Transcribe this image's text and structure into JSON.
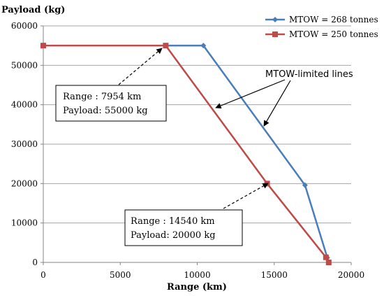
{
  "chart_data": {
    "type": "line",
    "title": "",
    "xlabel": "Range (km)",
    "ylabel": "Payload (kg)",
    "xlim": [
      0,
      20000
    ],
    "ylim": [
      0,
      60000
    ],
    "x_ticks": [
      0,
      5000,
      10000,
      15000,
      20000
    ],
    "y_ticks": [
      0,
      10000,
      20000,
      30000,
      40000,
      50000,
      60000
    ],
    "grid": true,
    "legend_position": "top-right",
    "series": [
      {
        "name": "MTOW = 268 tonnes",
        "color": "#4a7ebb",
        "marker": "diamond",
        "points": [
          [
            7954,
            55000
          ],
          [
            10400,
            55000
          ],
          [
            17000,
            19600
          ],
          [
            18450,
            1200
          ],
          [
            18540,
            0
          ]
        ]
      },
      {
        "name": "MTOW = 250 tonnes",
        "color": "#be4b48",
        "marker": "square",
        "points": [
          [
            0,
            55000
          ],
          [
            7954,
            55000
          ],
          [
            14540,
            20000
          ],
          [
            18360,
            1300
          ],
          [
            18540,
            0
          ]
        ]
      }
    ],
    "annotations": {
      "box1": {
        "line1": "Range :  7954 km",
        "line2": "Payload: 55000 kg"
      },
      "box2": {
        "line1": "Range :  14540 km",
        "line2": "Payload: 20000 kg"
      },
      "callout": "MTOW-limited lines"
    }
  }
}
